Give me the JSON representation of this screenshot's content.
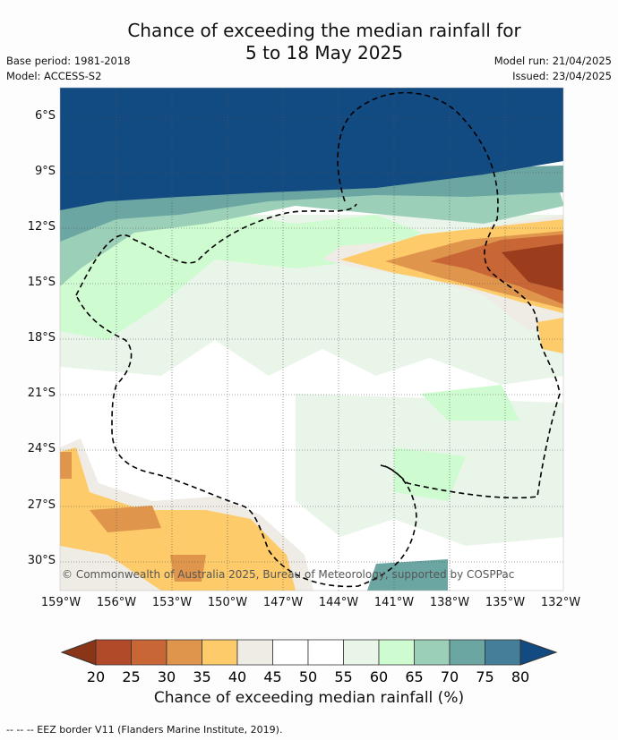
{
  "title": {
    "line1": "Chance of exceeding the median rainfall for",
    "line2": "5 to 18 May 2025"
  },
  "meta": {
    "base_period": "Base period: 1981-2018",
    "model": "Model: ACCESS-S2",
    "model_run": "Model run: 21/04/2025",
    "issued": "Issued: 23/04/2025"
  },
  "map": {
    "lat_labels": [
      "6°S",
      "9°S",
      "12°S",
      "15°S",
      "18°S",
      "21°S",
      "24°S",
      "27°S",
      "30°S"
    ],
    "lon_labels": [
      "159°W",
      "156°W",
      "153°W",
      "150°W",
      "147°W",
      "144°W",
      "141°W",
      "138°W",
      "135°W",
      "132°W"
    ],
    "copyright": "© Commonwealth of Australia 2025, Bureau of Meteorology, supported by COSPPac"
  },
  "colorbar": {
    "ticks": [
      "20",
      "25",
      "30",
      "35",
      "40",
      "45",
      "50",
      "55",
      "60",
      "65",
      "70",
      "75",
      "80"
    ],
    "colors": [
      "#b04a28",
      "#c96635",
      "#e0954c",
      "#fdcb6a",
      "#efece6",
      "#ffffff",
      "#ffffff",
      "#e9f5e8",
      "#cffbd1",
      "#9ccfb8",
      "#6ba6a3",
      "#457e98"
    ],
    "low_color": "#8a3418",
    "high_color": "#124a82",
    "label": "Chance of exceeding median rainfall (%)"
  },
  "legend_note": "--  --  -- EEZ border V11 (Flanders Marine Institute, 2019)."
}
